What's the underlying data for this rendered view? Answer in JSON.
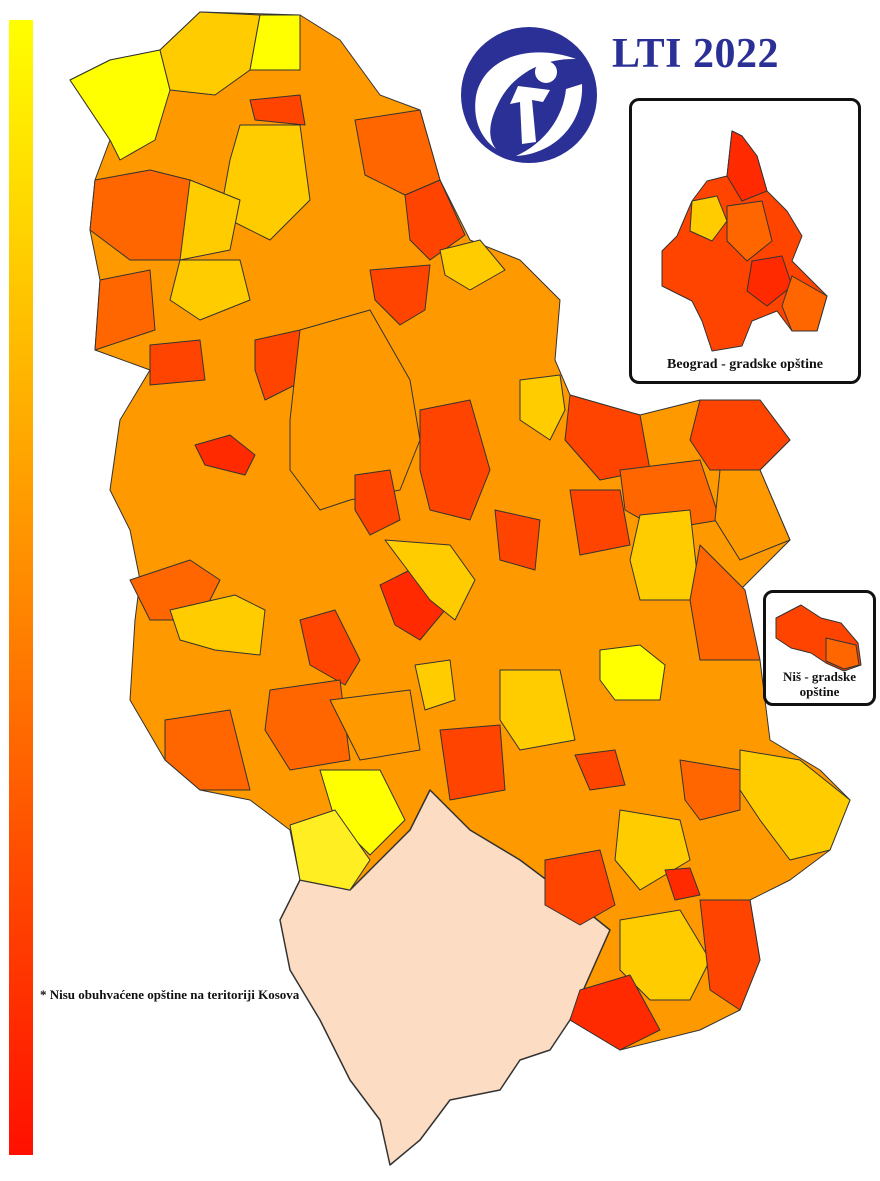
{
  "title": "LTI 2022",
  "logo": {
    "icon": "transparency-international-logo",
    "color": "#2b3096"
  },
  "legend": {
    "type": "color-gradient",
    "colors": [
      "#ffff00",
      "#ffc300",
      "#ff8a00",
      "#ff4a00",
      "#ff1000"
    ],
    "orientation": "vertical"
  },
  "insets": {
    "beograd": {
      "caption": "Beograd - gradske opštine"
    },
    "nis": {
      "caption": "Niš - gradske opštine"
    }
  },
  "footnote": "* Nisu obuhvaćene opštine na teritoriji Kosova",
  "colors": {
    "yellow": "#ffff00",
    "light_orange": "#ffcc00",
    "orange": "#ff9900",
    "dark_orange": "#ff6600",
    "red_orange": "#ff4400",
    "red": "#ff2a00",
    "kosovo": "#fcdcc2",
    "border": "#333333"
  }
}
